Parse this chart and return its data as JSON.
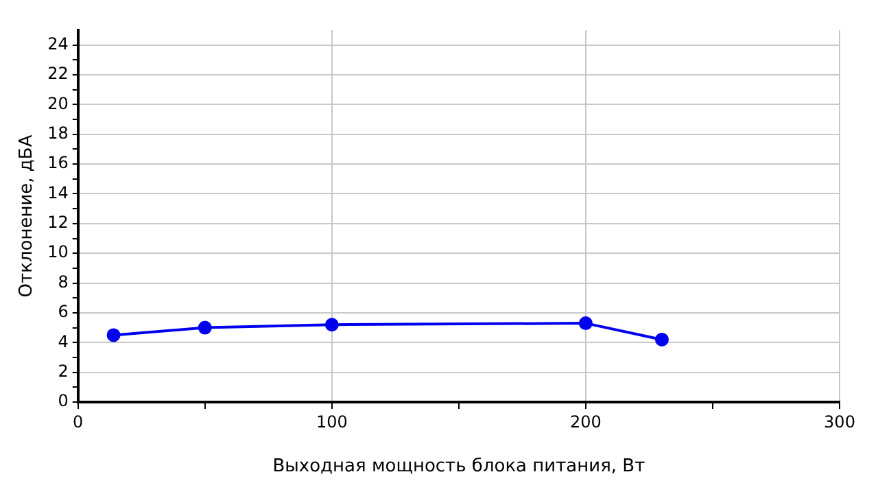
{
  "chart_data": {
    "type": "line",
    "xlabel": "Выходная мощность блока питания, Вт",
    "ylabel": "Отклонение, дБА",
    "x": [
      14,
      50,
      100,
      200,
      230
    ],
    "series": [
      {
        "color": "#0000ee",
        "values": [
          4.5,
          5.0,
          5.2,
          5.3,
          4.2
        ]
      }
    ],
    "xlim": [
      0,
      300
    ],
    "xticks": [
      0,
      {
        "value": 50,
        "label": null
      },
      100,
      {
        "value": 150,
        "label": null
      },
      200,
      {
        "value": 250,
        "label": null
      },
      300
    ],
    "ylim": [
      0,
      25
    ],
    "yticks": [
      0,
      {
        "value": 1,
        "label": null
      },
      2,
      {
        "value": 3,
        "label": null
      },
      4,
      {
        "value": 5,
        "label": null
      },
      6,
      {
        "value": 7,
        "label": null
      },
      8,
      {
        "value": 9,
        "label": null
      },
      10,
      {
        "value": 11,
        "label": null
      },
      12,
      {
        "value": 13,
        "label": null
      },
      14,
      {
        "value": 15,
        "label": null
      },
      16,
      {
        "value": 17,
        "label": null
      },
      18,
      {
        "value": 19,
        "label": null
      },
      20,
      {
        "value": 21,
        "label": null
      },
      22,
      {
        "value": 23,
        "label": null
      },
      24
    ],
    "grid": true,
    "legend": false,
    "marker": "circle",
    "line_style": "solid"
  }
}
